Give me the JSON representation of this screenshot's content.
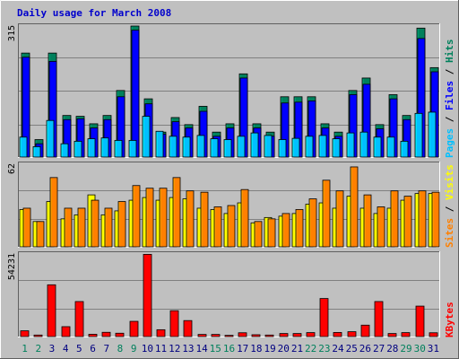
{
  "title": "Daily usage for March 2008",
  "colors": {
    "title": "#0000cc",
    "background": "#c0c0c0",
    "grid": "#808080",
    "hits": "#00805c",
    "files": "#0000ff",
    "pages": "#00c0ff",
    "visits": "#ffff00",
    "sites": "#ff8000",
    "kbytes": "#ff0000",
    "weekend_day": "#00805c",
    "weekday_day": "#000080"
  },
  "chart_data": [
    {
      "type": "bar",
      "panel": "top",
      "y_max_label": "315",
      "right_labels": [
        {
          "text": "Pages",
          "color": "#00c0ff"
        },
        {
          "text": " / ",
          "color": "#000000"
        },
        {
          "text": "Files",
          "color": "#0000ff"
        },
        {
          "text": " / ",
          "color": "#000000"
        },
        {
          "text": "Hits",
          "color": "#00805c"
        }
      ],
      "categories": [
        "1",
        "2",
        "3",
        "4",
        "5",
        "6",
        "7",
        "8",
        "9",
        "10",
        "11",
        "12",
        "13",
        "14",
        "15",
        "16",
        "17",
        "18",
        "19",
        "20",
        "21",
        "22",
        "23",
        "24",
        "25",
        "26",
        "27",
        "28",
        "29",
        "30",
        "31"
      ],
      "ylim": [
        0,
        315
      ],
      "series": [
        {
          "name": "Hits",
          "values": [
            250,
            42,
            250,
            100,
            98,
            80,
            100,
            160,
            315,
            140,
            60,
            95,
            78,
            122,
            60,
            80,
            200,
            80,
            60,
            145,
            145,
            145,
            80,
            60,
            160,
            190,
            78,
            150,
            100,
            310,
            215
          ]
        },
        {
          "name": "Files",
          "values": [
            240,
            32,
            230,
            90,
            92,
            70,
            90,
            145,
            305,
            128,
            55,
            85,
            70,
            110,
            50,
            70,
            190,
            70,
            50,
            130,
            132,
            135,
            70,
            50,
            150,
            175,
            68,
            140,
            90,
            285,
            205
          ]
        },
        {
          "name": "Pages",
          "values": [
            48,
            25,
            88,
            32,
            38,
            44,
            46,
            40,
            40,
            98,
            62,
            50,
            48,
            52,
            44,
            42,
            50,
            58,
            52,
            42,
            45,
            50,
            52,
            44,
            58,
            60,
            48,
            48,
            38,
            105,
            108
          ]
        }
      ]
    },
    {
      "type": "bar",
      "panel": "middle",
      "y_max_label": "62",
      "right_labels": [
        {
          "text": "Sites",
          "color": "#ff8000"
        },
        {
          "text": " / ",
          "color": "#000000"
        },
        {
          "text": "Visits",
          "color": "#ffff00"
        }
      ],
      "categories": [
        "1",
        "2",
        "3",
        "4",
        "5",
        "6",
        "7",
        "8",
        "9",
        "10",
        "11",
        "12",
        "13",
        "14",
        "15",
        "16",
        "17",
        "18",
        "19",
        "20",
        "21",
        "22",
        "23",
        "24",
        "25",
        "26",
        "27",
        "28",
        "29",
        "30",
        "31"
      ],
      "ylim": [
        0,
        62
      ],
      "series": [
        {
          "name": "Visits",
          "values": [
            28,
            19,
            34,
            21,
            24,
            39,
            24,
            27,
            35,
            37,
            35,
            37,
            36,
            29,
            28,
            25,
            33,
            18,
            22,
            23,
            25,
            32,
            33,
            29,
            38,
            29,
            25,
            29,
            35,
            40,
            40
          ]
        },
        {
          "name": "Sites",
          "values": [
            29,
            19,
            52,
            29,
            29,
            35,
            29,
            34,
            46,
            44,
            44,
            52,
            42,
            41,
            30,
            31,
            43,
            19,
            21,
            25,
            28,
            36,
            50,
            42,
            60,
            39,
            30,
            42,
            38,
            42,
            41
          ]
        }
      ]
    },
    {
      "type": "bar",
      "panel": "bottom",
      "y_max_label": "54231",
      "right_labels": [
        {
          "text": "KBytes",
          "color": "#ff0000"
        }
      ],
      "categories": [
        "1",
        "2",
        "3",
        "4",
        "5",
        "6",
        "7",
        "8",
        "9",
        "10",
        "11",
        "12",
        "13",
        "14",
        "15",
        "16",
        "17",
        "18",
        "19",
        "20",
        "21",
        "22",
        "23",
        "24",
        "25",
        "26",
        "27",
        "28",
        "29",
        "30",
        "31"
      ],
      "ylim": [
        0,
        54231
      ],
      "series": [
        {
          "name": "KBytes",
          "values": [
            3800,
            1000,
            34000,
            6500,
            23000,
            1500,
            2800,
            2200,
            10000,
            54000,
            4500,
            17000,
            10500,
            1400,
            1400,
            800,
            2500,
            1200,
            1000,
            2000,
            2000,
            2600,
            25000,
            2700,
            3200,
            7500,
            23000,
            2000,
            2600,
            20000,
            2500
          ]
        }
      ]
    }
  ]
}
